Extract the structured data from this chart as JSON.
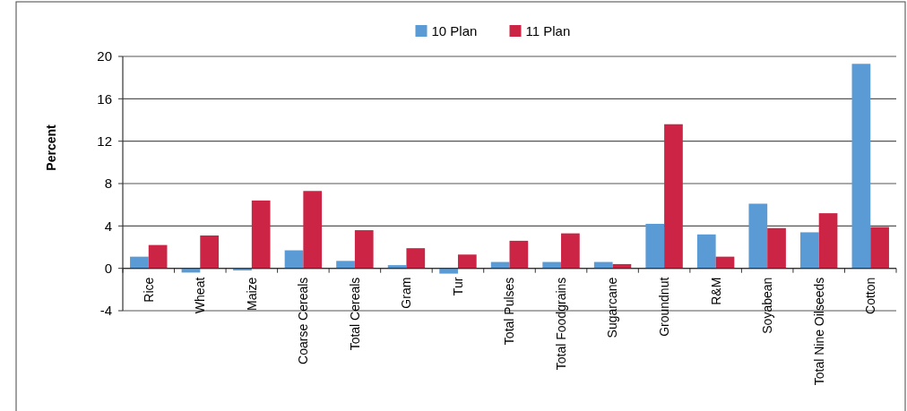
{
  "chart_data": {
    "type": "bar",
    "ylabel": "Percent",
    "categories": [
      "Rice",
      "Wheat",
      "Maize",
      "Coarse Cereals",
      "Total Cereals",
      "Gram",
      "Tur",
      "Total Pulses",
      "Total Foodgrains",
      "Sugarcane",
      "Groundnut",
      "R&M",
      "Soyabean",
      "Total Nine Oilseeds",
      "Cotton"
    ],
    "series": [
      {
        "name": "10 Plan",
        "color": "#5b9bd5",
        "values": [
          1.1,
          -0.4,
          -0.2,
          1.7,
          0.7,
          0.3,
          -0.5,
          0.6,
          0.6,
          0.6,
          4.2,
          3.2,
          6.1,
          3.4,
          19.3
        ]
      },
      {
        "name": "11 Plan",
        "color": "#cc2444",
        "values": [
          2.2,
          3.1,
          6.4,
          7.3,
          3.6,
          1.9,
          1.3,
          2.6,
          3.3,
          0.4,
          13.6,
          1.1,
          3.8,
          5.2,
          3.9
        ]
      }
    ],
    "ylim": [
      -4,
      20
    ],
    "yticks": [
      -4,
      0,
      4,
      8,
      12,
      16,
      20
    ],
    "grid": "y",
    "legend": "top"
  }
}
